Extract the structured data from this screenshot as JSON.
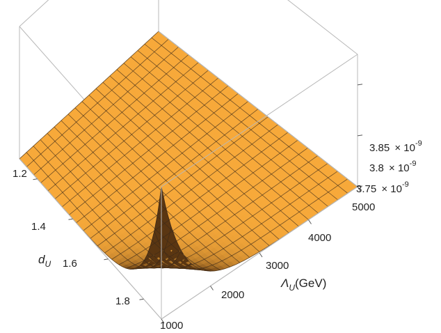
{
  "chart_data": {
    "type": "surface3d",
    "title": "",
    "x_axis": {
      "label_main": "Λ",
      "label_sub": "U",
      "label_unit": "(GeV)",
      "range": [
        1000,
        5000
      ],
      "ticks": [
        1000,
        2000,
        3000,
        4000,
        5000
      ],
      "tick_labels": [
        "1000",
        "2000",
        "3000",
        "4000",
        "5000"
      ]
    },
    "y_axis": {
      "label_main": "d",
      "label_sub": "U",
      "range": [
        1.1,
        1.9
      ],
      "ticks": [
        1.2,
        1.4,
        1.6,
        1.8
      ],
      "tick_labels": [
        "1.2",
        "1.4",
        "1.6",
        "1.8"
      ]
    },
    "z_axis": {
      "range": [
        3.75e-09,
        3.88e-09
      ],
      "ticks": [
        3.75e-09,
        3.8e-09,
        3.85e-09
      ],
      "tick_labels": [
        {
          "mantissa": "3.75",
          "times": "× 10",
          "exp": "-9"
        },
        {
          "mantissa": "3.8",
          "times": "× 10",
          "exp": "-9"
        },
        {
          "mantissa": "3.85",
          "times": "× 10",
          "exp": "-9"
        }
      ]
    },
    "surface": {
      "description_values": {
        "plateau_z": 3.75e-09,
        "spike_x": 1000,
        "spike_y": 1.9,
        "spike_z": 3.88e-09
      },
      "grid_x_lines": 21,
      "grid_y_lines": 21
    },
    "colors": {
      "surface": "#F7A93A",
      "surface_dark": "#5A3612",
      "mesh": "#3a2a1a",
      "box": "#b8b8b8"
    }
  }
}
